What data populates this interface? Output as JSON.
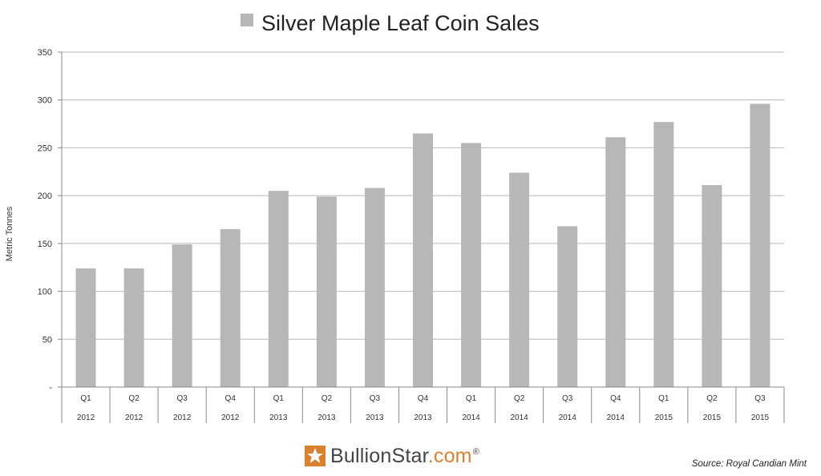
{
  "chart_data": {
    "type": "bar",
    "title": "Silver Maple Leaf Coin Sales",
    "legend_label": "Silver Maple Leaf Coin Sales",
    "legend_position": "top",
    "ylabel": "Metric Tonnes",
    "xlabel": "",
    "ylim": [
      0,
      350
    ],
    "yticks": [
      0,
      50,
      100,
      150,
      200,
      250,
      300,
      350
    ],
    "ytick_labels": [
      "-",
      "50",
      "100",
      "150",
      "200",
      "250",
      "300",
      "350"
    ],
    "grid": true,
    "categories": [
      {
        "quarter": "Q1",
        "year": "2012"
      },
      {
        "quarter": "Q2",
        "year": "2012"
      },
      {
        "quarter": "Q3",
        "year": "2012"
      },
      {
        "quarter": "Q4",
        "year": "2012"
      },
      {
        "quarter": "Q1",
        "year": "2013"
      },
      {
        "quarter": "Q2",
        "year": "2013"
      },
      {
        "quarter": "Q3",
        "year": "2013"
      },
      {
        "quarter": "Q4",
        "year": "2013"
      },
      {
        "quarter": "Q1",
        "year": "2014"
      },
      {
        "quarter": "Q2",
        "year": "2014"
      },
      {
        "quarter": "Q3",
        "year": "2014"
      },
      {
        "quarter": "Q4",
        "year": "2014"
      },
      {
        "quarter": "Q1",
        "year": "2015"
      },
      {
        "quarter": "Q2",
        "year": "2015"
      },
      {
        "quarter": "Q3",
        "year": "2015"
      }
    ],
    "values": [
      124,
      124,
      149,
      165,
      205,
      199,
      208,
      265,
      255,
      224,
      168,
      261,
      277,
      211,
      296
    ],
    "bar_color": "#b7b7b7"
  },
  "logo": {
    "brand_main": "BullionStar",
    "brand_accent": ".com",
    "reg": "®"
  },
  "source": "Source: Royal Candian Mint"
}
